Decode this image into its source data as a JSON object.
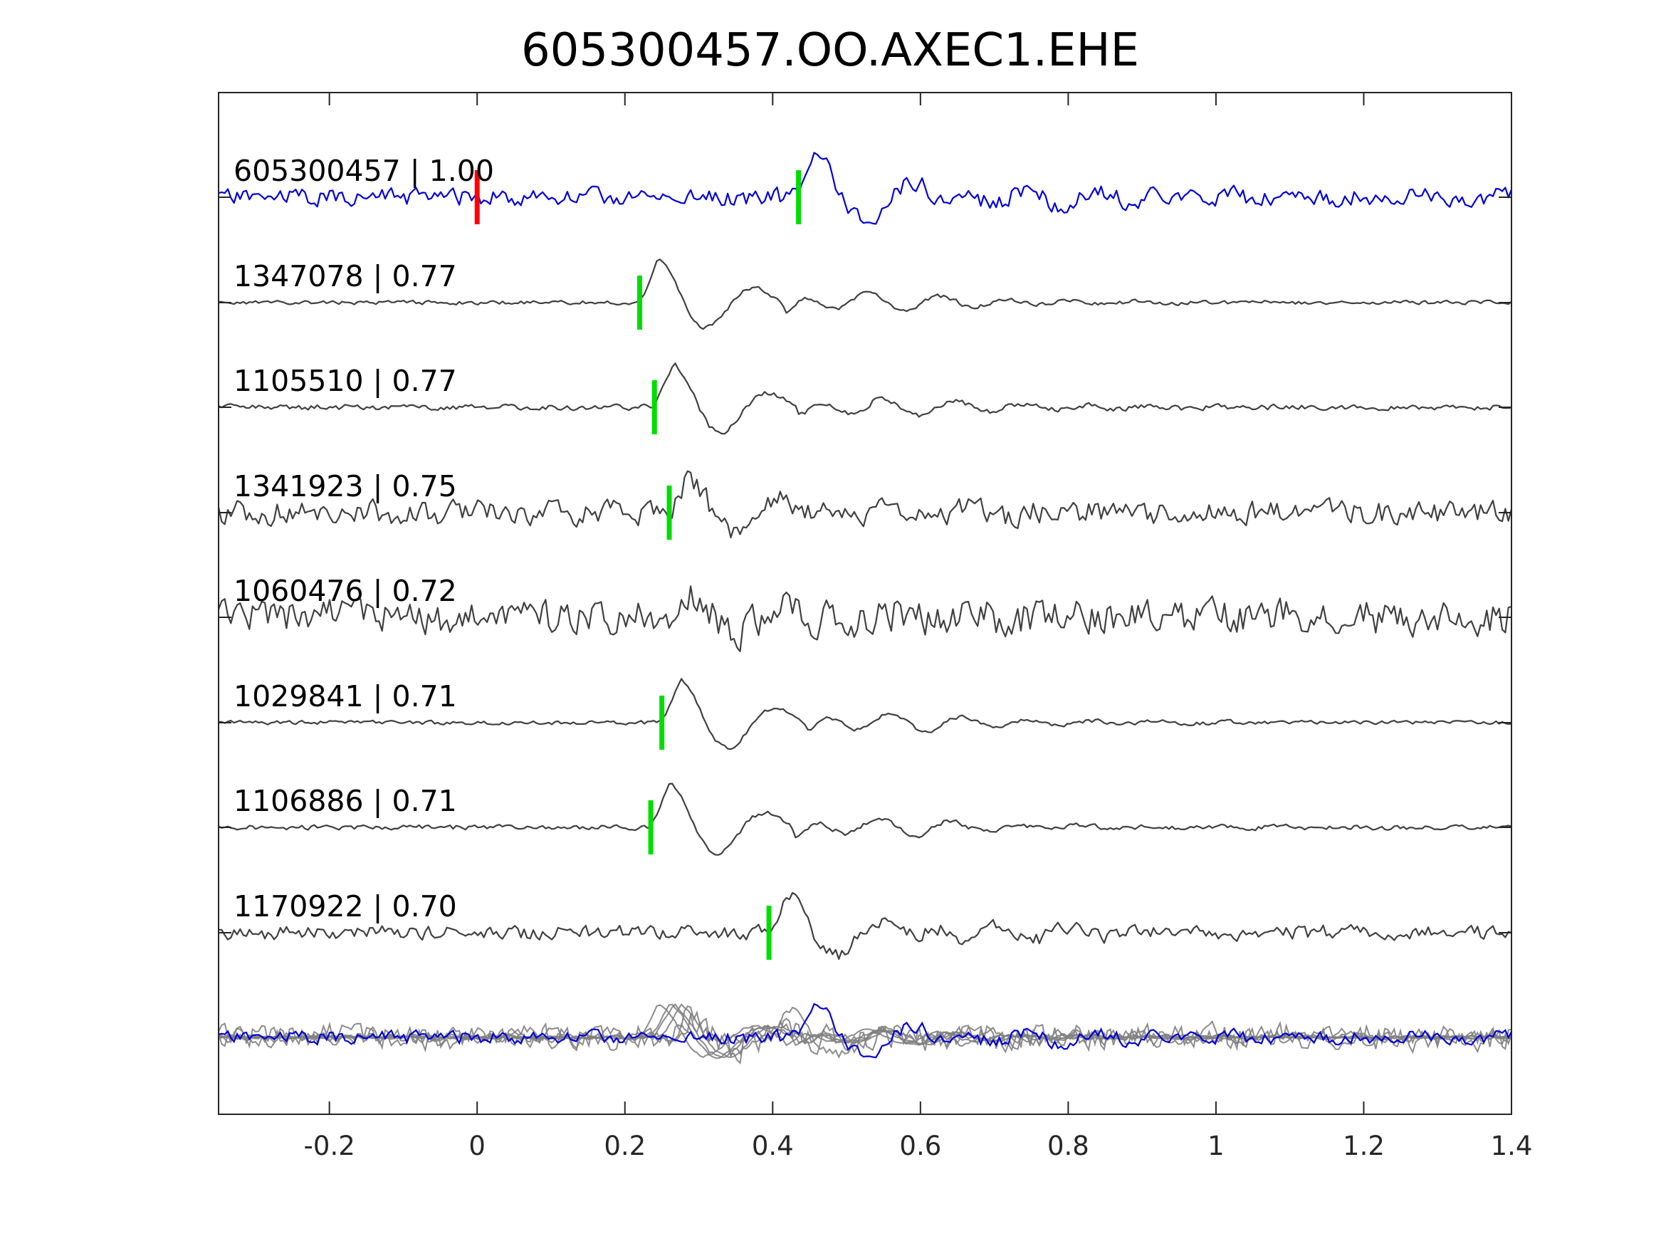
{
  "chart_data": {
    "type": "line",
    "title": "605300457.OO.AXEC1.EHE",
    "xlabel": "",
    "ylabel": "",
    "xlim": [
      -0.35,
      1.4
    ],
    "xticks": [
      {
        "value": -0.2,
        "label": "-0.2"
      },
      {
        "value": 0,
        "label": "0"
      },
      {
        "value": 0.2,
        "label": "0.2"
      },
      {
        "value": 0.4,
        "label": "0.4"
      },
      {
        "value": 0.6,
        "label": "0.6"
      },
      {
        "value": 0.8,
        "label": "0.8"
      },
      {
        "value": 1,
        "label": "1"
      },
      {
        "value": 1.2,
        "label": "1.2"
      },
      {
        "value": 1.4,
        "label": "1.4"
      }
    ],
    "grid": false,
    "colors": {
      "template": "#0000dd",
      "match": "#404040",
      "stack": "#808080",
      "pick_origin": "#ff0000",
      "pick_phase": "#00dd00",
      "axes": "#262626"
    },
    "traces": [
      {
        "label": "605300457 | 1.00",
        "role": "template",
        "pick_origin": 0.0,
        "pick_phase": 0.435,
        "onset": 0.43,
        "amp": 1.0,
        "noise": 0.22,
        "seed": 11
      },
      {
        "label": "1347078 | 0.77",
        "role": "match",
        "pick_phase": 0.22,
        "onset": 0.215,
        "amp": 1.0,
        "noise": 0.05,
        "seed": 23
      },
      {
        "label": "1105510 | 0.77",
        "role": "match",
        "pick_phase": 0.24,
        "onset": 0.235,
        "amp": 1.0,
        "noise": 0.07,
        "seed": 37
      },
      {
        "label": "1341923 | 0.75",
        "role": "match",
        "pick_phase": 0.26,
        "onset": 0.255,
        "amp": 0.85,
        "noise": 0.3,
        "seed": 41
      },
      {
        "label": "1060476 | 0.72",
        "role": "match",
        "pick_phase": null,
        "onset": 0.26,
        "amp": 0.5,
        "noise": 0.45,
        "seed": 53
      },
      {
        "label": "1029841 | 0.71",
        "role": "match",
        "pick_phase": 0.25,
        "onset": 0.245,
        "amp": 1.0,
        "noise": 0.05,
        "seed": 67
      },
      {
        "label": "1106886 | 0.71",
        "role": "match",
        "pick_phase": 0.235,
        "onset": 0.23,
        "amp": 1.0,
        "noise": 0.06,
        "seed": 71
      },
      {
        "label": "1170922 | 0.70",
        "role": "match",
        "pick_phase": 0.395,
        "onset": 0.39,
        "amp": 0.9,
        "noise": 0.18,
        "seed": 89
      }
    ],
    "stack": {
      "role": "overlay",
      "description_visible": false
    }
  }
}
